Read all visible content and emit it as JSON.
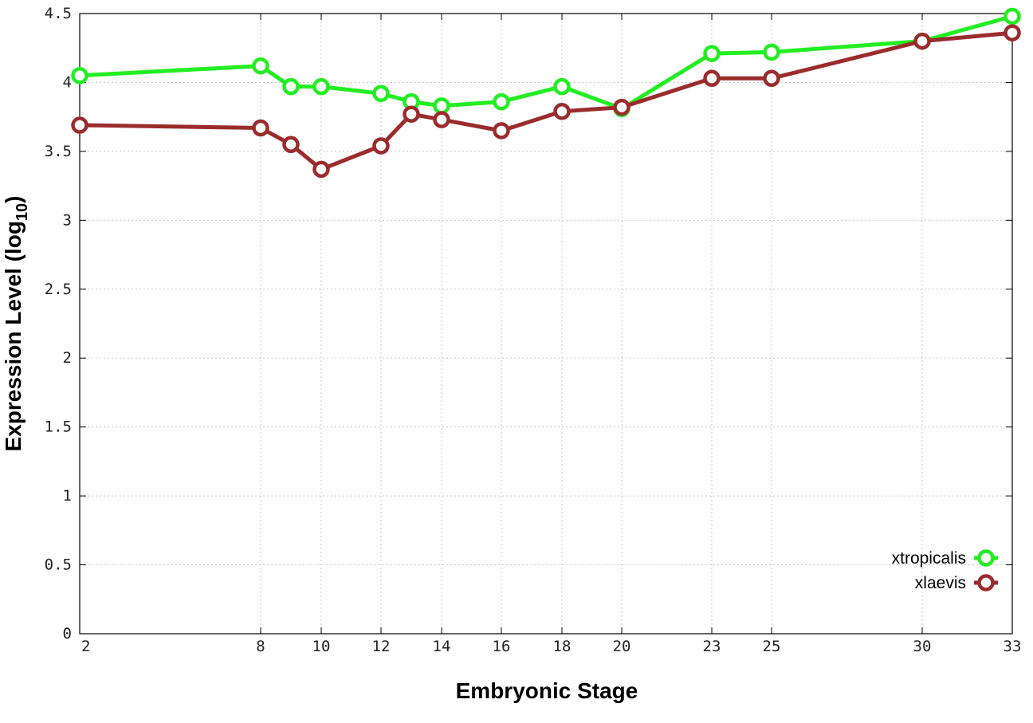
{
  "chart_data": {
    "type": "line",
    "xlabel": "Embryonic Stage",
    "ylabel_main": "Expression Level (log",
    "ylabel_sub": "10",
    "ylabel_close": ")",
    "ylim": [
      0,
      4.5
    ],
    "x_ticks": [
      2,
      8,
      10,
      12,
      14,
      16,
      18,
      20,
      23,
      25,
      30,
      33
    ],
    "x_tick_labels": [
      "2",
      "8",
      "10",
      "12",
      "14",
      "16",
      "18",
      "20",
      "23",
      "25",
      "30",
      "33"
    ],
    "y_ticks": [
      0,
      0.5,
      1,
      1.5,
      2,
      2.5,
      3,
      3.5,
      4,
      4.5
    ],
    "y_tick_labels": [
      "0",
      "0.5",
      "1",
      "1.5",
      "2",
      "2.5",
      "3",
      "3.5",
      "4",
      "4.5"
    ],
    "grid": true,
    "legend_position": "bottom-right",
    "x_scale": "categorical-mixed",
    "series": [
      {
        "name": "xtropicalis",
        "color": "#22ee22",
        "marker": "open-circle",
        "x": [
          2,
          8,
          9,
          10,
          12,
          13,
          14,
          16,
          18,
          20,
          23,
          25,
          30,
          33
        ],
        "y": [
          4.05,
          4.12,
          3.97,
          3.97,
          3.92,
          3.86,
          3.83,
          3.86,
          3.97,
          3.81,
          4.21,
          4.22,
          4.3,
          4.48
        ]
      },
      {
        "name": "xlaevis",
        "color": "#9b2c2c",
        "marker": "open-circle",
        "x": [
          2,
          8,
          9,
          10,
          12,
          13,
          14,
          16,
          18,
          20,
          23,
          25,
          30,
          33
        ],
        "y": [
          3.69,
          3.67,
          3.55,
          3.37,
          3.54,
          3.77,
          3.73,
          3.65,
          3.79,
          3.82,
          4.03,
          4.03,
          4.3,
          4.36
        ]
      }
    ]
  }
}
